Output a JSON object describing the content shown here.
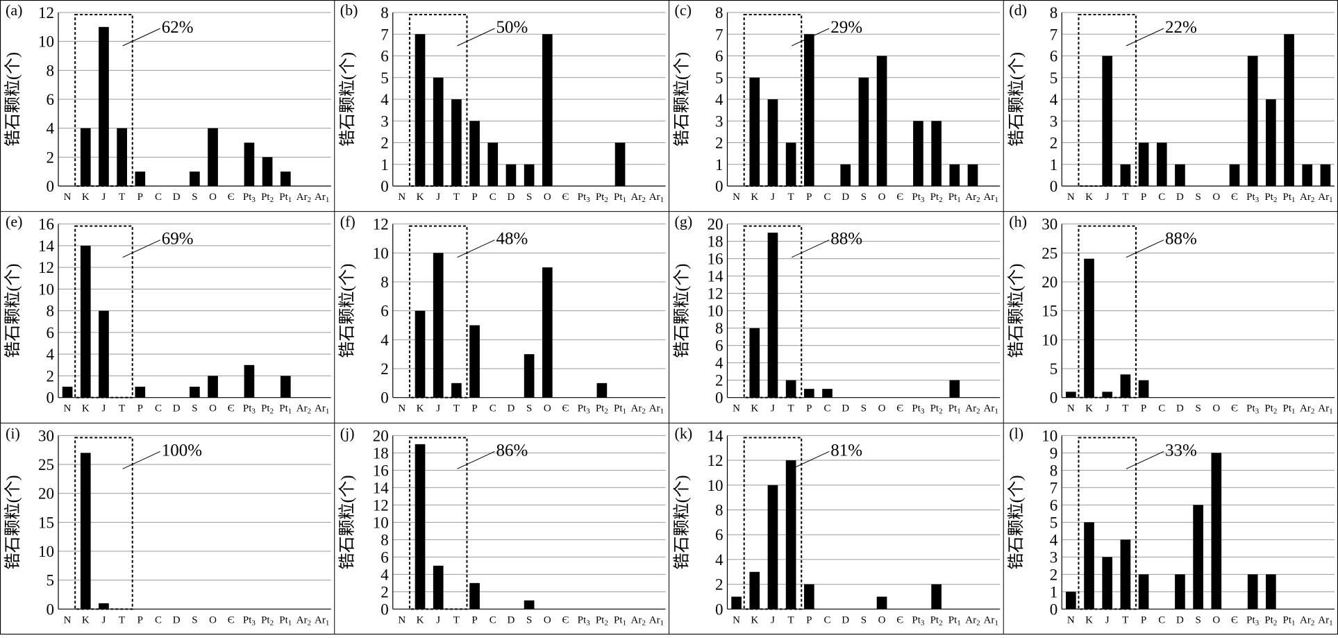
{
  "figure": {
    "ylabel": "锆石颗粒(个)",
    "categories": [
      "N",
      "K",
      "J",
      "T",
      "P",
      "C",
      "D",
      "S",
      "O",
      "Є",
      "Pt₃",
      "Pt₂",
      "Pt₁",
      "Ar₂",
      "Ar₁"
    ],
    "colors": {
      "bar": "#000000",
      "grid": "#9a9a9a",
      "frame": "#000000",
      "highlight_box": "#000000"
    }
  },
  "chart_data": [
    {
      "type": "bar",
      "panel": "(a)",
      "ylim": [
        0,
        12
      ],
      "yticks": [
        0,
        2,
        4,
        6,
        8,
        10,
        12
      ],
      "values": [
        0,
        4,
        11,
        4,
        1,
        0,
        0,
        1,
        4,
        0,
        3,
        2,
        1,
        0,
        0
      ],
      "highlight": {
        "categories": [
          "K",
          "J",
          "T"
        ],
        "label": "62%"
      }
    },
    {
      "type": "bar",
      "panel": "(b)",
      "ylim": [
        0,
        8
      ],
      "yticks": [
        0,
        1,
        2,
        3,
        4,
        5,
        6,
        7,
        8
      ],
      "values": [
        0,
        7,
        5,
        4,
        3,
        2,
        1,
        1,
        7,
        0,
        0,
        0,
        2,
        0,
        0
      ],
      "highlight": {
        "categories": [
          "K",
          "J",
          "T"
        ],
        "label": "50%"
      }
    },
    {
      "type": "bar",
      "panel": "(c)",
      "ylim": [
        0,
        8
      ],
      "yticks": [
        0,
        1,
        2,
        3,
        4,
        5,
        6,
        7,
        8
      ],
      "values": [
        0,
        5,
        4,
        2,
        7,
        0,
        1,
        5,
        6,
        0,
        3,
        3,
        1,
        1,
        0
      ],
      "highlight": {
        "categories": [
          "K",
          "J",
          "T"
        ],
        "label": "29%"
      }
    },
    {
      "type": "bar",
      "panel": "(d)",
      "ylim": [
        0,
        8
      ],
      "yticks": [
        0,
        1,
        2,
        3,
        4,
        5,
        6,
        7,
        8
      ],
      "values": [
        0,
        0,
        6,
        1,
        2,
        2,
        1,
        0,
        0,
        1,
        6,
        4,
        7,
        1,
        1
      ],
      "highlight": {
        "categories": [
          "K",
          "J",
          "T"
        ],
        "label": "22%"
      }
    },
    {
      "type": "bar",
      "panel": "(e)",
      "ylim": [
        0,
        16
      ],
      "yticks": [
        0,
        2,
        4,
        6,
        8,
        10,
        12,
        14,
        16
      ],
      "values": [
        1,
        14,
        8,
        0,
        1,
        0,
        0,
        1,
        2,
        0,
        3,
        0,
        2,
        0,
        0
      ],
      "highlight": {
        "categories": [
          "K",
          "J",
          "T"
        ],
        "label": "69%"
      }
    },
    {
      "type": "bar",
      "panel": "(f)",
      "ylim": [
        0,
        12
      ],
      "yticks": [
        0,
        2,
        4,
        6,
        8,
        10,
        12
      ],
      "values": [
        0,
        6,
        10,
        1,
        5,
        0,
        0,
        3,
        9,
        0,
        0,
        1,
        0,
        0,
        0
      ],
      "highlight": {
        "categories": [
          "K",
          "J",
          "T"
        ],
        "label": "48%"
      }
    },
    {
      "type": "bar",
      "panel": "(g)",
      "ylim": [
        0,
        20
      ],
      "yticks": [
        0,
        2,
        4,
        6,
        8,
        10,
        12,
        14,
        16,
        18,
        20
      ],
      "values": [
        0,
        8,
        19,
        2,
        1,
        1,
        0,
        0,
        0,
        0,
        0,
        0,
        2,
        0,
        0
      ],
      "highlight": {
        "categories": [
          "K",
          "J",
          "T"
        ],
        "label": "88%"
      }
    },
    {
      "type": "bar",
      "panel": "(h)",
      "ylim": [
        0,
        30
      ],
      "yticks": [
        0,
        5,
        10,
        15,
        20,
        25,
        30
      ],
      "values": [
        1,
        24,
        1,
        4,
        3,
        0,
        0,
        0,
        0,
        0,
        0,
        0,
        0,
        0,
        0
      ],
      "highlight": {
        "categories": [
          "K",
          "J",
          "T"
        ],
        "label": "88%"
      }
    },
    {
      "type": "bar",
      "panel": "(i)",
      "ylim": [
        0,
        30
      ],
      "yticks": [
        0,
        5,
        10,
        15,
        20,
        25,
        30
      ],
      "values": [
        0,
        27,
        1,
        0,
        0,
        0,
        0,
        0,
        0,
        0,
        0,
        0,
        0,
        0,
        0
      ],
      "highlight": {
        "categories": [
          "K",
          "J",
          "T"
        ],
        "label": "100%"
      }
    },
    {
      "type": "bar",
      "panel": "(j)",
      "ylim": [
        0,
        20
      ],
      "yticks": [
        0,
        2,
        4,
        6,
        8,
        10,
        12,
        14,
        16,
        18,
        20
      ],
      "values": [
        0,
        19,
        5,
        0,
        3,
        0,
        0,
        1,
        0,
        0,
        0,
        0,
        0,
        0,
        0
      ],
      "highlight": {
        "categories": [
          "K",
          "J",
          "T"
        ],
        "label": "86%"
      }
    },
    {
      "type": "bar",
      "panel": "(k)",
      "ylim": [
        0,
        14
      ],
      "yticks": [
        0,
        2,
        4,
        6,
        8,
        10,
        12,
        14
      ],
      "values": [
        1,
        3,
        10,
        12,
        2,
        0,
        0,
        0,
        1,
        0,
        0,
        2,
        0,
        0,
        0
      ],
      "highlight": {
        "categories": [
          "K",
          "J",
          "T"
        ],
        "label": "81%"
      }
    },
    {
      "type": "bar",
      "panel": "(l)",
      "ylim": [
        0,
        10
      ],
      "yticks": [
        0,
        1,
        2,
        3,
        4,
        5,
        6,
        7,
        8,
        9,
        10
      ],
      "values": [
        1,
        5,
        3,
        4,
        2,
        0,
        2,
        6,
        9,
        0,
        2,
        2,
        0,
        0,
        0
      ],
      "highlight": {
        "categories": [
          "K",
          "J",
          "T"
        ],
        "label": "33%"
      }
    }
  ]
}
